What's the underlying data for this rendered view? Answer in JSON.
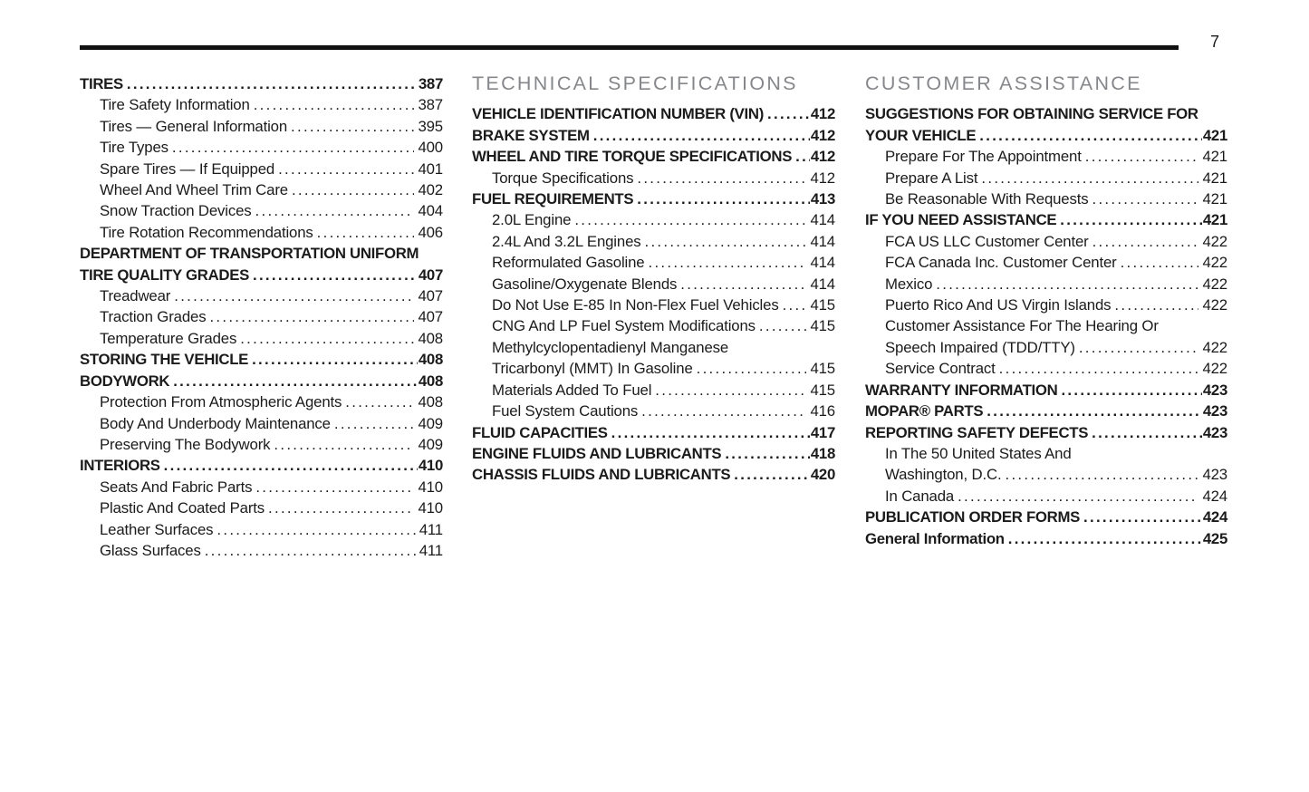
{
  "page": {
    "number": "7"
  },
  "colors": {
    "background": "#ffffff",
    "text": "#1b1b1b",
    "rule": "#111111",
    "section_header": "#85878a"
  },
  "columns": [
    {
      "name": "left",
      "entries": [
        {
          "type": "h1",
          "label": "TIRES",
          "page": "387"
        },
        {
          "type": "sub",
          "label": "Tire Safety Information",
          "page": "387"
        },
        {
          "type": "sub",
          "label": "Tires — General Information",
          "page": "395"
        },
        {
          "type": "sub",
          "label": "Tire Types",
          "page": "400"
        },
        {
          "type": "sub",
          "label": "Spare Tires — If Equipped",
          "page": "401"
        },
        {
          "type": "sub",
          "label": "Wheel And Wheel Trim Care",
          "page": "402"
        },
        {
          "type": "sub",
          "label": "Snow Traction Devices",
          "page": "404"
        },
        {
          "type": "sub",
          "label": "Tire Rotation Recommendations",
          "page": "406"
        },
        {
          "type": "h1-wrap",
          "label": "DEPARTMENT OF TRANSPORTATION UNIFORM"
        },
        {
          "type": "h1",
          "label": "TIRE QUALITY GRADES",
          "page": "407"
        },
        {
          "type": "sub",
          "label": "Treadwear",
          "page": "407"
        },
        {
          "type": "sub",
          "label": "Traction Grades",
          "page": "407"
        },
        {
          "type": "sub",
          "label": "Temperature Grades",
          "page": "408"
        },
        {
          "type": "h1",
          "label": "STORING THE VEHICLE",
          "page": "408"
        },
        {
          "type": "h1",
          "label": "BODYWORK",
          "page": "408"
        },
        {
          "type": "sub",
          "label": "Protection From Atmospheric Agents",
          "page": "408"
        },
        {
          "type": "sub",
          "label": "Body And Underbody Maintenance",
          "page": "409"
        },
        {
          "type": "sub",
          "label": "Preserving The Bodywork",
          "page": "409"
        },
        {
          "type": "h1",
          "label": "INTERIORS",
          "page": "410"
        },
        {
          "type": "sub",
          "label": "Seats And Fabric Parts",
          "page": "410"
        },
        {
          "type": "sub",
          "label": "Plastic And Coated Parts",
          "page": "410"
        },
        {
          "type": "sub",
          "label": "Leather Surfaces",
          "page": "411"
        },
        {
          "type": "sub",
          "label": "Glass Surfaces",
          "page": "411"
        }
      ]
    },
    {
      "name": "middle",
      "entries": [
        {
          "type": "section",
          "label": "TECHNICAL SPECIFICATIONS"
        },
        {
          "type": "h1",
          "label": "VEHICLE IDENTIFICATION NUMBER (VIN)",
          "page": "412"
        },
        {
          "type": "h1",
          "label": "BRAKE SYSTEM",
          "page": "412"
        },
        {
          "type": "h1",
          "label": "WHEEL AND TIRE TORQUE SPECIFICATIONS",
          "page": "412"
        },
        {
          "type": "sub",
          "label": "Torque Specifications",
          "page": "412"
        },
        {
          "type": "h1",
          "label": "FUEL REQUIREMENTS",
          "page": "413"
        },
        {
          "type": "sub",
          "label": "2.0L Engine",
          "page": "414"
        },
        {
          "type": "sub",
          "label": "2.4L And 3.2L Engines",
          "page": "414"
        },
        {
          "type": "sub",
          "label": "Reformulated Gasoline",
          "page": "414"
        },
        {
          "type": "sub",
          "label": "Gasoline/Oxygenate Blends",
          "page": "414"
        },
        {
          "type": "sub",
          "label": "Do Not Use E-85 In Non-Flex Fuel Vehicles",
          "page": "415"
        },
        {
          "type": "sub",
          "label": "CNG And LP Fuel System Modifications",
          "page": "415"
        },
        {
          "type": "sub-wrap",
          "label": "Methylcyclopentadienyl Manganese"
        },
        {
          "type": "sub",
          "label": "Tricarbonyl (MMT) In Gasoline",
          "page": "415"
        },
        {
          "type": "sub",
          "label": "Materials Added To Fuel",
          "page": "415"
        },
        {
          "type": "sub",
          "label": "Fuel System Cautions",
          "page": "416"
        },
        {
          "type": "h1",
          "label": "FLUID CAPACITIES",
          "page": "417"
        },
        {
          "type": "h1",
          "label": "ENGINE FLUIDS AND LUBRICANTS",
          "page": "418"
        },
        {
          "type": "h1",
          "label": "CHASSIS FLUIDS AND LUBRICANTS",
          "page": "420"
        }
      ]
    },
    {
      "name": "right",
      "entries": [
        {
          "type": "section",
          "label": "CUSTOMER ASSISTANCE"
        },
        {
          "type": "h1-wrap",
          "label": "SUGGESTIONS FOR OBTAINING SERVICE FOR"
        },
        {
          "type": "h1",
          "label": "YOUR VEHICLE",
          "page": "421"
        },
        {
          "type": "sub",
          "label": "Prepare For The Appointment",
          "page": "421"
        },
        {
          "type": "sub",
          "label": "Prepare A List",
          "page": "421"
        },
        {
          "type": "sub",
          "label": "Be Reasonable With Requests",
          "page": "421"
        },
        {
          "type": "h1",
          "label": "IF YOU NEED ASSISTANCE",
          "page": "421"
        },
        {
          "type": "sub",
          "label": "FCA US LLC Customer Center",
          "page": "422"
        },
        {
          "type": "sub",
          "label": "FCA Canada Inc. Customer Center",
          "page": "422"
        },
        {
          "type": "sub",
          "label": "Mexico",
          "page": "422"
        },
        {
          "type": "sub",
          "label": "Puerto Rico And US Virgin Islands",
          "page": "422"
        },
        {
          "type": "sub-wrap",
          "label": "Customer Assistance For The Hearing Or"
        },
        {
          "type": "sub",
          "label": "Speech Impaired (TDD/TTY)",
          "page": "422"
        },
        {
          "type": "sub",
          "label": "Service Contract",
          "page": "422"
        },
        {
          "type": "h1",
          "label": "WARRANTY INFORMATION",
          "page": "423"
        },
        {
          "type": "h1",
          "label": "MOPAR® PARTS",
          "page": "423"
        },
        {
          "type": "h1",
          "label": "REPORTING SAFETY DEFECTS",
          "page": "423"
        },
        {
          "type": "sub-wrap",
          "label": "In The 50 United States And"
        },
        {
          "type": "sub",
          "label": "Washington, D.C.",
          "page": "423"
        },
        {
          "type": "sub",
          "label": "In Canada",
          "page": "424"
        },
        {
          "type": "h1",
          "label": "PUBLICATION ORDER FORMS",
          "page": "424"
        },
        {
          "type": "h1",
          "label": "General Information",
          "page": "425"
        }
      ]
    }
  ]
}
